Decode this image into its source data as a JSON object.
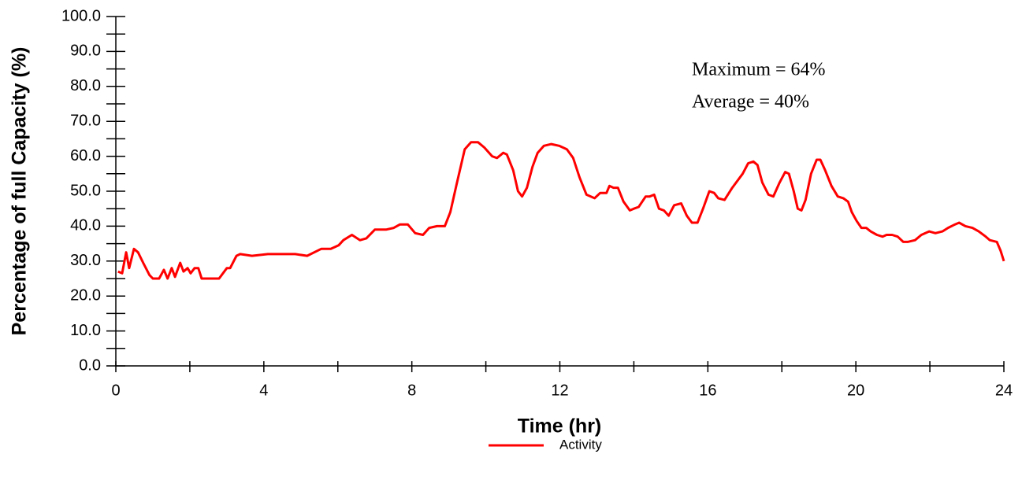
{
  "chart_data": {
    "type": "line",
    "title_y": "Percentage of full Capacity (%)",
    "title_x": "Time (hr)",
    "annotations": [
      "Maximum = 64%",
      "Average = 40%"
    ],
    "legend": "bottom",
    "xlim": [
      0,
      24
    ],
    "xticks": [
      0,
      4,
      8,
      12,
      16,
      20,
      24
    ],
    "ylim": [
      0,
      100
    ],
    "yticks": [
      {
        "value": 0,
        "label": "0.0"
      },
      {
        "value": 10,
        "label": "10.0"
      },
      {
        "value": 20,
        "label": "20.0"
      },
      {
        "value": 30,
        "label": "30.0"
      },
      {
        "value": 40,
        "label": "40.0"
      },
      {
        "value": 50,
        "label": "50.0"
      },
      {
        "value": 60,
        "label": "60.0"
      },
      {
        "value": 70,
        "label": "70.0"
      },
      {
        "value": 80,
        "label": "80.0"
      },
      {
        "value": 90,
        "label": "90.0"
      },
      {
        "value": 100,
        "label": "100.0"
      }
    ],
    "x": [
      0.06,
      0.17,
      0.28,
      0.36,
      0.49,
      0.6,
      0.74,
      0.91,
      1.0,
      1.17,
      1.3,
      1.4,
      1.51,
      1.6,
      1.74,
      1.83,
      1.94,
      2.02,
      2.13,
      2.23,
      2.32,
      2.51,
      2.79,
      3.0,
      3.09,
      3.26,
      3.36,
      3.68,
      4.11,
      4.53,
      4.85,
      5.17,
      5.55,
      5.81,
      6.02,
      6.15,
      6.38,
      6.6,
      6.77,
      7.0,
      7.3,
      7.51,
      7.68,
      7.89,
      8.09,
      8.3,
      8.47,
      8.68,
      8.89,
      9.04,
      9.21,
      9.43,
      9.6,
      9.79,
      9.96,
      10.17,
      10.3,
      10.47,
      10.57,
      10.74,
      10.87,
      10.98,
      11.11,
      11.26,
      11.4,
      11.57,
      11.77,
      11.98,
      12.19,
      12.36,
      12.53,
      12.72,
      12.94,
      13.09,
      13.26,
      13.34,
      13.45,
      13.57,
      13.72,
      13.89,
      14.0,
      14.13,
      14.32,
      14.43,
      14.55,
      14.68,
      14.81,
      14.94,
      15.09,
      15.28,
      15.43,
      15.57,
      15.72,
      15.87,
      16.04,
      16.17,
      16.28,
      16.45,
      16.66,
      16.94,
      17.09,
      17.23,
      17.34,
      17.47,
      17.64,
      17.77,
      17.94,
      18.09,
      18.19,
      18.32,
      18.43,
      18.53,
      18.64,
      18.79,
      18.94,
      19.04,
      19.17,
      19.34,
      19.51,
      19.66,
      19.79,
      19.89,
      20.02,
      20.15,
      20.28,
      20.4,
      20.57,
      20.72,
      20.83,
      20.98,
      21.13,
      21.28,
      21.4,
      21.6,
      21.77,
      21.98,
      22.15,
      22.34,
      22.49,
      22.68,
      22.79,
      22.96,
      23.15,
      23.32,
      23.51,
      23.62,
      23.81,
      23.91,
      24.0
    ],
    "series": [
      {
        "name": "Activity",
        "color": "#ff0000",
        "values": [
          27,
          26.5,
          32.5,
          28,
          33.5,
          32.5,
          29.5,
          26,
          25,
          25,
          27.5,
          25,
          28,
          25.5,
          29.5,
          27,
          28,
          26.5,
          28,
          28,
          25,
          25,
          25,
          28,
          28,
          31.5,
          32,
          31.5,
          32,
          32,
          32,
          31.5,
          33.5,
          33.5,
          34.5,
          36,
          37.5,
          36,
          36.5,
          39,
          39,
          39.5,
          40.5,
          40.5,
          38,
          37.5,
          39.5,
          40,
          40,
          44,
          52,
          62,
          64,
          64,
          62.5,
          60,
          59.5,
          61,
          60.5,
          56,
          50,
          48.5,
          51,
          57,
          61,
          63,
          63.5,
          63,
          62,
          59.5,
          54,
          49,
          48,
          49.5,
          49.5,
          51.5,
          51,
          51,
          47,
          44.5,
          45,
          45.5,
          48.5,
          48.5,
          49,
          45,
          44.5,
          43,
          46,
          46.5,
          43,
          41,
          41,
          45,
          50,
          49.5,
          48,
          47.5,
          51,
          55,
          58,
          58.5,
          57.5,
          52.5,
          49,
          48.5,
          52.5,
          55.5,
          55,
          50,
          45,
          44.5,
          47.5,
          55,
          59,
          59,
          56,
          51.5,
          48.5,
          48,
          47,
          44,
          41.5,
          39.5,
          39.5,
          38.5,
          37.5,
          37,
          37.5,
          37.5,
          37,
          35.5,
          35.5,
          36,
          37.5,
          38.5,
          38,
          38.5,
          39.5,
          40.5,
          41,
          40,
          39.5,
          38.5,
          37,
          36,
          35.5,
          33,
          30
        ]
      }
    ]
  }
}
